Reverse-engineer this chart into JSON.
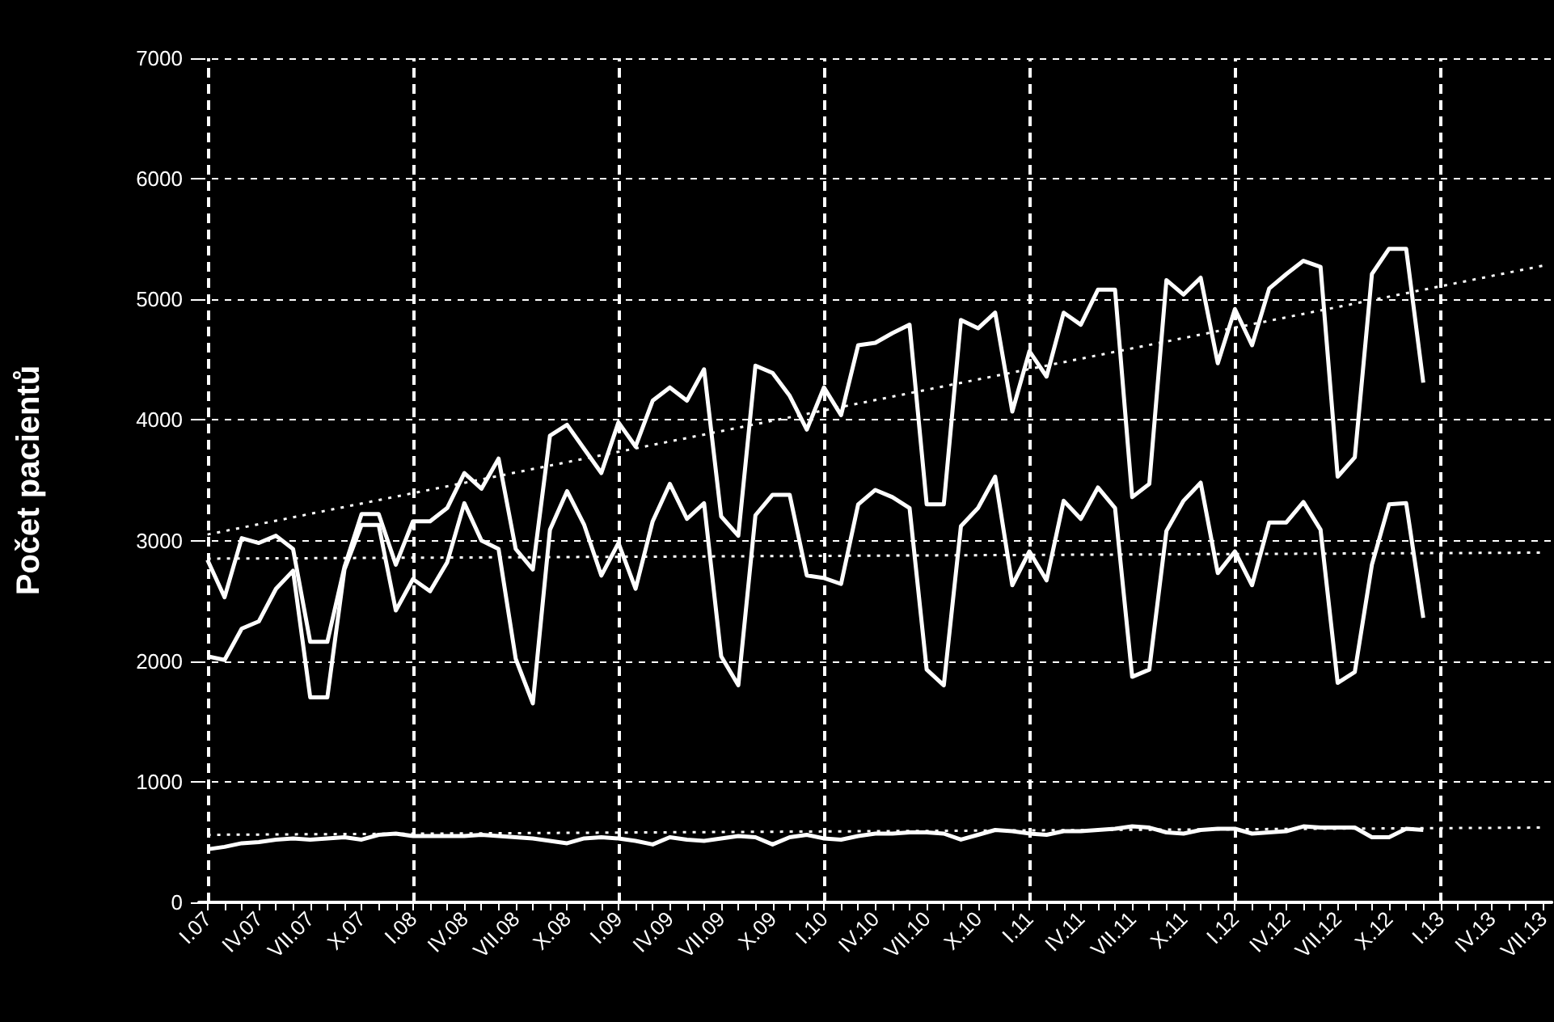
{
  "chart_data": {
    "type": "line",
    "ylabel": "Počet pacientů",
    "categories": [
      "I.07",
      null,
      null,
      "IV.07",
      null,
      null,
      "VII.07",
      null,
      null,
      "X.07",
      null,
      null,
      "I.08",
      null,
      null,
      "IV.08",
      null,
      null,
      "VII.08",
      null,
      null,
      "X.08",
      null,
      null,
      "I.09",
      null,
      null,
      "IV.09",
      null,
      null,
      "VII.09",
      null,
      null,
      "X.09",
      null,
      null,
      "I.10",
      null,
      null,
      "IV.10",
      null,
      null,
      "VII.10",
      null,
      null,
      "X.10",
      null,
      null,
      "I.11",
      null,
      null,
      "IV.11",
      null,
      null,
      "VII.11",
      null,
      null,
      "X.11",
      null,
      null,
      "I.12",
      null,
      null,
      "IV.12",
      null,
      null,
      "VII.12",
      null,
      null,
      "X.12",
      null,
      null,
      "I.13",
      null,
      null,
      "IV.13",
      null,
      null,
      "VII.13"
    ],
    "series": [
      {
        "color": "#ffffff",
        "line_style": "solid",
        "values": [
          2840,
          2530,
          3020,
          2980,
          3040,
          2930,
          2160,
          2160,
          2780,
          3220,
          3220,
          2800,
          3160,
          3160,
          3270,
          3560,
          3430,
          3680,
          2930,
          2760,
          3870,
          3960,
          3760,
          3560,
          3980,
          3780,
          4160,
          4270,
          4160,
          4420,
          3200,
          3040,
          4450,
          4390,
          4200,
          3920,
          4270,
          4040,
          4620,
          4640,
          4720,
          4790,
          3300,
          3300,
          4830,
          4760,
          4890,
          4070,
          4570,
          4360,
          4890,
          4790,
          5080,
          5080,
          3360,
          3470,
          5160,
          5040,
          5180,
          4470,
          4920,
          4620,
          5090,
          5210,
          5320,
          5270,
          3530,
          3690,
          5210,
          5420,
          5420,
          4310,
          null,
          null,
          null,
          null,
          null,
          null,
          null
        ]
      },
      {
        "color": "#ffffff",
        "line_style": "solid",
        "values": [
          2040,
          2010,
          2270,
          2330,
          2600,
          2750,
          1700,
          1700,
          2760,
          3130,
          3130,
          2420,
          2680,
          2580,
          2820,
          3310,
          3000,
          2930,
          2020,
          1650,
          3090,
          3410,
          3130,
          2710,
          2980,
          2600,
          3160,
          3470,
          3180,
          3310,
          2040,
          1800,
          3210,
          3380,
          3380,
          2710,
          2690,
          2640,
          3300,
          3420,
          3360,
          3270,
          1930,
          1800,
          3120,
          3270,
          3530,
          2630,
          2910,
          2670,
          3330,
          3180,
          3440,
          3270,
          1870,
          1930,
          3080,
          3330,
          3480,
          2730,
          2910,
          2630,
          3150,
          3150,
          3320,
          3090,
          1820,
          1910,
          2800,
          3300,
          3310,
          2360,
          null,
          null,
          null,
          null,
          null,
          null,
          null
        ]
      },
      {
        "color": "#ffffff",
        "line_style": "solid",
        "values": [
          440,
          460,
          490,
          500,
          520,
          530,
          520,
          530,
          540,
          520,
          560,
          570,
          550,
          550,
          550,
          550,
          560,
          550,
          540,
          530,
          510,
          490,
          530,
          540,
          530,
          510,
          480,
          540,
          520,
          510,
          530,
          550,
          540,
          480,
          540,
          560,
          530,
          520,
          550,
          570,
          570,
          580,
          580,
          570,
          520,
          560,
          600,
          590,
          570,
          560,
          590,
          590,
          600,
          610,
          630,
          620,
          580,
          570,
          600,
          610,
          610,
          570,
          580,
          590,
          630,
          620,
          620,
          620,
          540,
          540,
          610,
          600,
          null,
          null,
          null,
          null,
          null,
          null,
          null
        ]
      },
      {
        "type": "line",
        "color": "#ffffff",
        "line_style": "dotted",
        "x": [
          "I.07",
          "VII.13"
        ],
        "values": [
          3050,
          5280
        ]
      },
      {
        "type": "line",
        "color": "#ffffff",
        "line_style": "dotted",
        "x": [
          "I.07",
          "VII.13"
        ],
        "values": [
          2850,
          2900
        ]
      },
      {
        "type": "line",
        "color": "#ffffff",
        "line_style": "dotted",
        "x": [
          "I.07",
          "VII.13"
        ],
        "values": [
          560,
          620
        ]
      }
    ],
    "ylim": [
      0,
      7000
    ],
    "yticks": [
      0,
      1000,
      2000,
      3000,
      4000,
      5000,
      6000,
      7000
    ],
    "ref_lines": [
      {
        "axis": "x",
        "value": "I.07",
        "line_style": "dashed",
        "color": "#ffffff"
      },
      {
        "axis": "x",
        "value": "I.08",
        "line_style": "dashed",
        "color": "#ffffff"
      },
      {
        "axis": "x",
        "value": "I.09",
        "line_style": "dashed",
        "color": "#ffffff"
      },
      {
        "axis": "x",
        "value": "I.10",
        "line_style": "dashed",
        "color": "#ffffff"
      },
      {
        "axis": "x",
        "value": "I.11",
        "line_style": "dashed",
        "color": "#ffffff"
      },
      {
        "axis": "x",
        "value": "I.12",
        "line_style": "dashed",
        "color": "#ffffff"
      },
      {
        "axis": "x",
        "value": "I.13",
        "line_style": "dashed",
        "color": "#ffffff"
      }
    ],
    "grid": "y",
    "marker": "none"
  }
}
